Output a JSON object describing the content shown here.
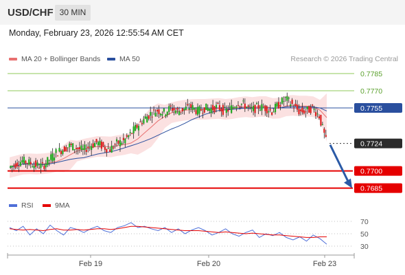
{
  "header": {
    "symbol": "USD/CHF",
    "timeframe": "30 MIN"
  },
  "datetime": "Monday, February 23, 2026 12:55:54 AM CET",
  "legend": {
    "ma_bb_label": "MA 20 + Bollinger Bands",
    "ma50_label": "MA 50",
    "credit": "Research © 2026 Trading Central"
  },
  "rsi_legend": {
    "rsi_label": "RSI",
    "ma_label": "9MA"
  },
  "colors": {
    "up": "#22aa22",
    "down": "#dd2222",
    "ma20": "#e87070",
    "bollinger": "#f7c9c9",
    "ma50": "#2a4f9e",
    "support": "#e50000",
    "rsi": "#4f6fd8",
    "rsi_ma": "#e50000",
    "projection_arrow": "#2b5aa6"
  },
  "chart_data": {
    "type": "candlestick",
    "symbol": "USD/CHF",
    "timeframe": "30 MIN",
    "price_range": [
      0.7675,
      0.7795
    ],
    "current_price": 0.7724,
    "x_tick_labels": [
      "Feb 19",
      "Feb 20",
      "Feb 23"
    ],
    "levels": [
      {
        "value": 0.7785,
        "label": "0.7785",
        "kind": "resistance"
      },
      {
        "value": 0.777,
        "label": "0.7770",
        "kind": "resistance"
      },
      {
        "value": 0.7755,
        "label": "0.7755",
        "kind": "pivot"
      },
      {
        "value": 0.7724,
        "label": "0.7724",
        "kind": "last_price"
      },
      {
        "value": 0.77,
        "label": "0.7700",
        "kind": "support"
      },
      {
        "value": 0.7685,
        "label": "0.7685",
        "kind": "support"
      }
    ],
    "projection": {
      "from": 0.7724,
      "to": 0.7685,
      "direction": "down"
    },
    "price_path": [
      0.7703,
      0.7706,
      0.7709,
      0.7707,
      0.7705,
      0.7704,
      0.771,
      0.7716,
      0.7719,
      0.7722,
      0.772,
      0.7718,
      0.7722,
      0.7725,
      0.7721,
      0.7719,
      0.7724,
      0.7726,
      0.7732,
      0.7739,
      0.7745,
      0.775,
      0.7753,
      0.7751,
      0.7755,
      0.7752,
      0.7754,
      0.7756,
      0.7752,
      0.7755,
      0.7754,
      0.7756,
      0.7752,
      0.7755,
      0.776,
      0.7757,
      0.7753,
      0.7756,
      0.7755,
      0.7752,
      0.7758,
      0.7763,
      0.7758,
      0.7752,
      0.7752,
      0.7755,
      0.7748,
      0.7726
    ],
    "rsi": {
      "levels": [
        70,
        50,
        30
      ],
      "rsi_path": [
        60,
        55,
        62,
        48,
        58,
        50,
        64,
        55,
        48,
        60,
        57,
        52,
        58,
        62,
        55,
        52,
        60,
        63,
        68,
        60,
        62,
        58,
        55,
        60,
        52,
        58,
        50,
        56,
        60,
        55,
        48,
        52,
        58,
        50,
        46,
        52,
        56,
        44,
        50,
        47,
        52,
        44,
        40,
        45,
        38,
        48,
        42,
        33
      ],
      "ma_path": [
        58,
        57,
        56,
        57,
        56,
        55,
        57,
        58,
        56,
        56,
        57,
        56,
        57,
        58,
        58,
        57,
        58,
        60,
        62,
        62,
        61,
        60,
        59,
        58,
        57,
        56,
        55,
        55,
        55,
        54,
        53,
        52,
        53,
        52,
        51,
        50,
        51,
        50,
        49,
        48,
        48,
        47,
        46,
        45,
        44,
        44,
        45,
        45
      ]
    }
  }
}
